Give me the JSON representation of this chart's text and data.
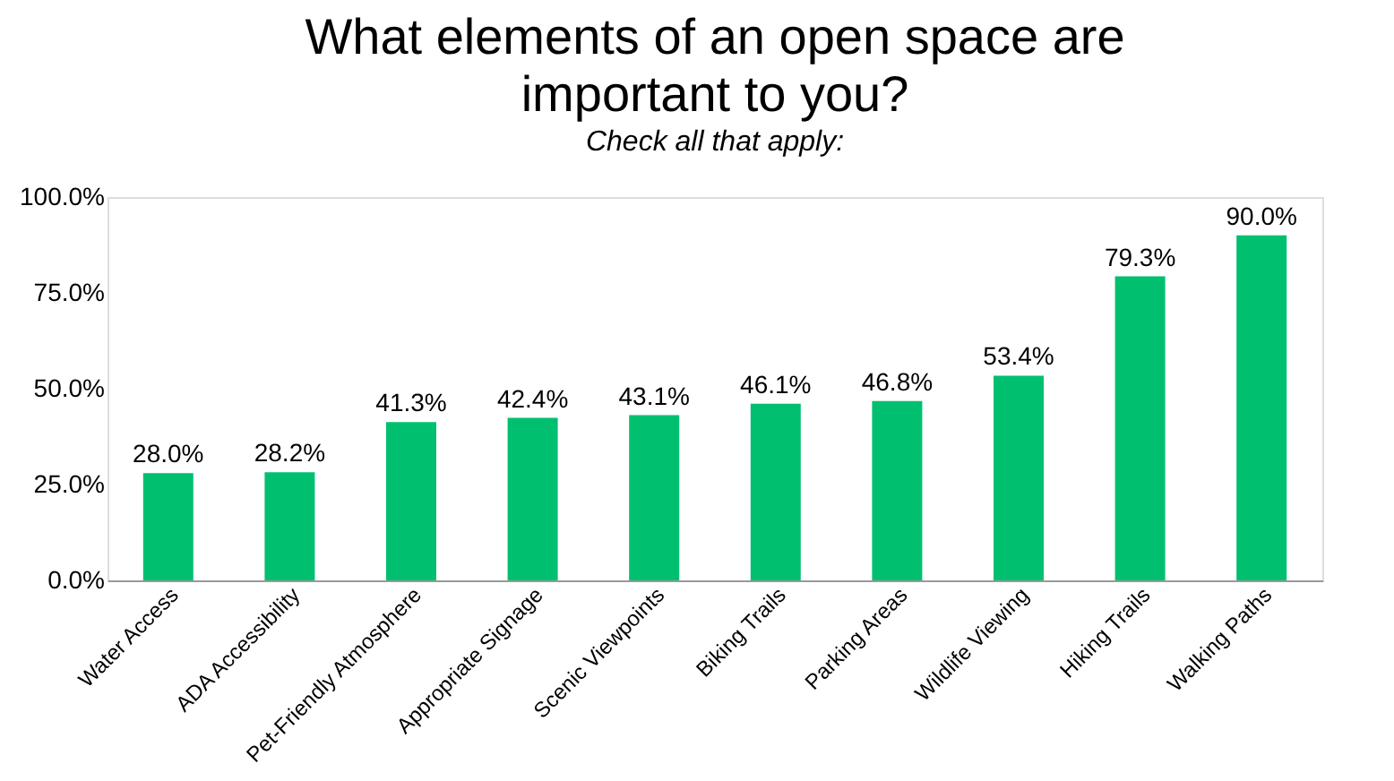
{
  "chart_data": {
    "type": "bar",
    "title": "What elements of an open space are important to you?",
    "subtitle": "Check all that apply:",
    "categories": [
      "Water Access",
      "ADA Accessibility",
      "Pet-Friendly Atmosphere",
      "Appropriate Signage",
      "Scenic Viewpoints",
      "Biking Trails",
      "Parking Areas",
      "Wildlife Viewing",
      "Hiking Trails",
      "Walking Paths"
    ],
    "values": [
      28.0,
      28.2,
      41.3,
      42.4,
      43.1,
      46.1,
      46.8,
      53.4,
      79.3,
      90.0
    ],
    "value_labels": [
      "28.0%",
      "28.2%",
      "41.3%",
      "42.4%",
      "43.1%",
      "46.1%",
      "46.8%",
      "53.4%",
      "79.3%",
      "90.0%"
    ],
    "color": "#00c070",
    "ylim": [
      0,
      100
    ],
    "yticks": [
      {
        "value": 0,
        "label": "0.0%"
      },
      {
        "value": 25,
        "label": "25.0%"
      },
      {
        "value": 50,
        "label": "50.0%"
      },
      {
        "value": 75,
        "label": "75.0%"
      },
      {
        "value": 100,
        "label": "100.0%"
      }
    ],
    "grid": false
  }
}
